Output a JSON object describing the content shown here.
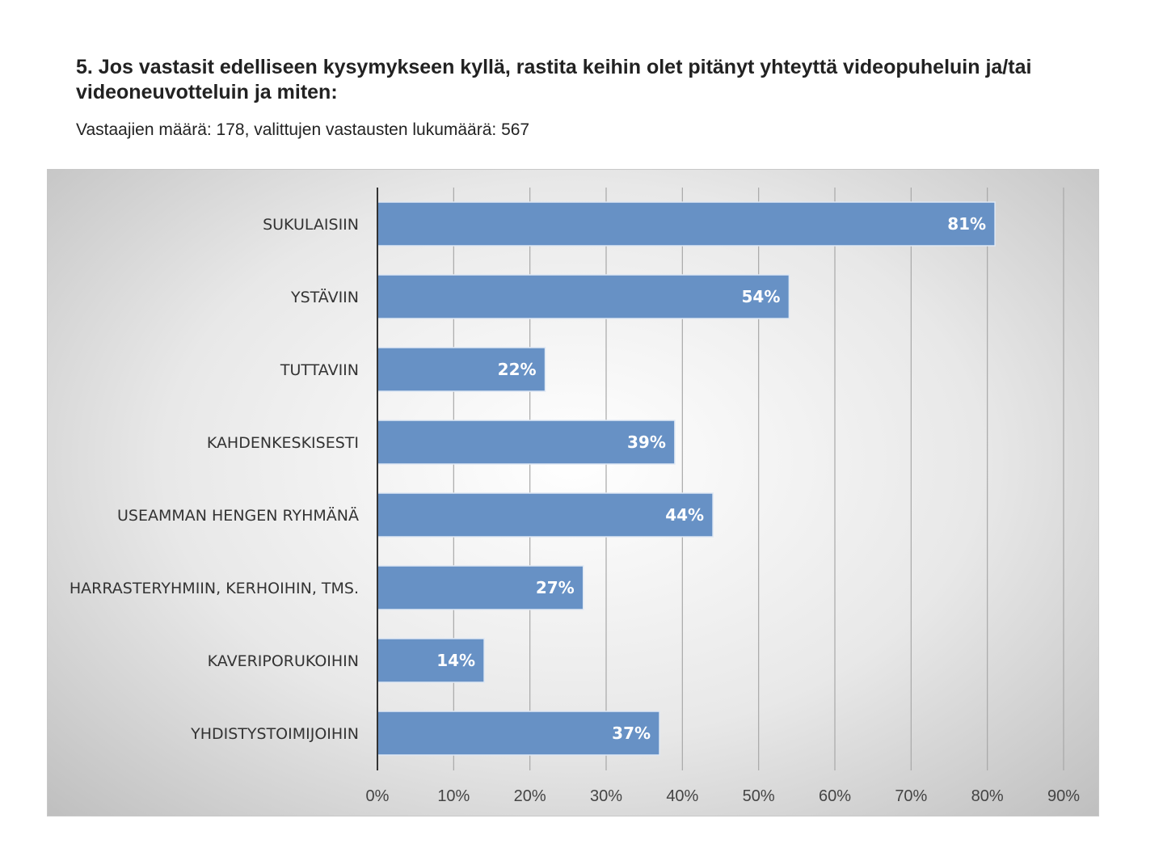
{
  "title": "5. Jos vastasit edelliseen kysymykseen kyllä, rastita keihin olet pitänyt yhteyttä videopuheluin ja/tai videoneuvotteluin ja miten:",
  "subtitle": "Vastaajien määrä: 178, valittujen vastausten lukumäärä: 567",
  "chart_data": {
    "type": "bar",
    "orientation": "horizontal",
    "categories": [
      "SUKULAISIIN",
      "YSTÄVIIN",
      "TUTTAVIIN",
      "KAHDENKESKISESTI",
      "USEAMMAN HENGEN RYHMÄNÄ",
      "HARRASTERYHMIIN, KERHOIHIN, TMS.",
      "KAVERIPORUKOIHIN",
      "YHDISTYSTOIMIJOIHIN"
    ],
    "values": [
      81,
      54,
      22,
      39,
      44,
      27,
      14,
      37
    ],
    "data_labels": [
      "81%",
      "54%",
      "22%",
      "39%",
      "44%",
      "27%",
      "14%",
      "37%"
    ],
    "xlim": [
      0,
      90
    ],
    "x_ticks": [
      "0%",
      "10%",
      "20%",
      "30%",
      "40%",
      "50%",
      "60%",
      "70%",
      "80%",
      "90%"
    ],
    "grid": true,
    "bar_color": "#6791c5"
  }
}
